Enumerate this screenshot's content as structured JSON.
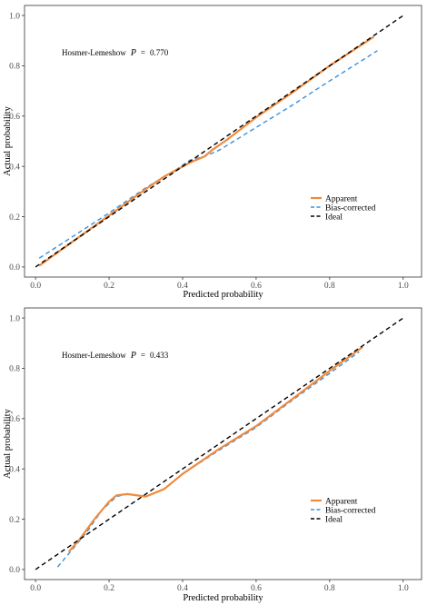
{
  "chart_data": [
    {
      "type": "line",
      "annotation": {
        "prefix": "Hosmer-Lemeshow",
        "p_symbol": "P",
        "equals": "=",
        "p_value": "0.770"
      },
      "xlabel": "Predicted probability",
      "ylabel": "Actual probability",
      "xlim": [
        -0.03,
        1.05
      ],
      "ylim": [
        -0.04,
        1.04
      ],
      "xticks": [
        "0.0",
        "0.2",
        "0.4",
        "0.6",
        "0.8",
        "1.0"
      ],
      "yticks": [
        "0.0",
        "0.2",
        "0.4",
        "0.6",
        "0.8",
        "1.0"
      ],
      "legend_position": "bottom-right",
      "series": [
        {
          "name": "Apparent",
          "color": "#f08a3c",
          "style": "solid",
          "x": [
            0.01,
            0.1,
            0.2,
            0.3,
            0.35,
            0.42,
            0.46,
            0.48,
            0.52,
            0.6,
            0.7,
            0.8,
            0.92
          ],
          "y": [
            0.005,
            0.1,
            0.205,
            0.31,
            0.36,
            0.415,
            0.44,
            0.465,
            0.505,
            0.595,
            0.695,
            0.8,
            0.915
          ]
        },
        {
          "name": "Bias-corrected",
          "color": "#3a8fd9",
          "style": "dashed",
          "x": [
            0.01,
            0.1,
            0.2,
            0.3,
            0.38,
            0.42,
            0.46,
            0.5,
            0.6,
            0.7,
            0.8,
            0.93
          ],
          "y": [
            0.035,
            0.12,
            0.215,
            0.315,
            0.385,
            0.425,
            0.44,
            0.465,
            0.555,
            0.645,
            0.74,
            0.86
          ]
        },
        {
          "name": "Ideal",
          "color": "#000000",
          "style": "dashed",
          "x": [
            0.0,
            1.0
          ],
          "y": [
            0.0,
            1.0
          ]
        }
      ]
    },
    {
      "type": "line",
      "annotation": {
        "prefix": "Hosmer-Lemeshow",
        "p_symbol": "P",
        "equals": "=",
        "p_value": "0.433"
      },
      "xlabel": "Predicted probability",
      "ylabel": "Actual probability",
      "xlim": [
        -0.03,
        1.05
      ],
      "ylim": [
        -0.04,
        1.04
      ],
      "xticks": [
        "0.0",
        "0.2",
        "0.4",
        "0.6",
        "0.8",
        "1.0"
      ],
      "yticks": [
        "0.0",
        "0.2",
        "0.4",
        "0.6",
        "0.8",
        "1.0"
      ],
      "legend_position": "bottom-right",
      "series": [
        {
          "name": "Apparent",
          "color": "#f08a3c",
          "style": "solid",
          "x": [
            0.09,
            0.12,
            0.16,
            0.2,
            0.22,
            0.25,
            0.3,
            0.35,
            0.4,
            0.5,
            0.6,
            0.7,
            0.8,
            0.89
          ],
          "y": [
            0.07,
            0.12,
            0.2,
            0.27,
            0.295,
            0.3,
            0.29,
            0.32,
            0.38,
            0.48,
            0.57,
            0.68,
            0.79,
            0.885
          ]
        },
        {
          "name": "Bias-corrected",
          "color": "#3a8fd9",
          "style": "dashed",
          "x": [
            0.06,
            0.1,
            0.14,
            0.18,
            0.22,
            0.25,
            0.3,
            0.35,
            0.4,
            0.5,
            0.6,
            0.7,
            0.8,
            0.88
          ],
          "y": [
            0.01,
            0.08,
            0.15,
            0.235,
            0.29,
            0.3,
            0.29,
            0.32,
            0.38,
            0.475,
            0.565,
            0.675,
            0.78,
            0.865
          ]
        },
        {
          "name": "Ideal",
          "color": "#000000",
          "style": "dashed",
          "x": [
            0.0,
            1.0
          ],
          "y": [
            0.0,
            1.0
          ]
        }
      ]
    }
  ]
}
